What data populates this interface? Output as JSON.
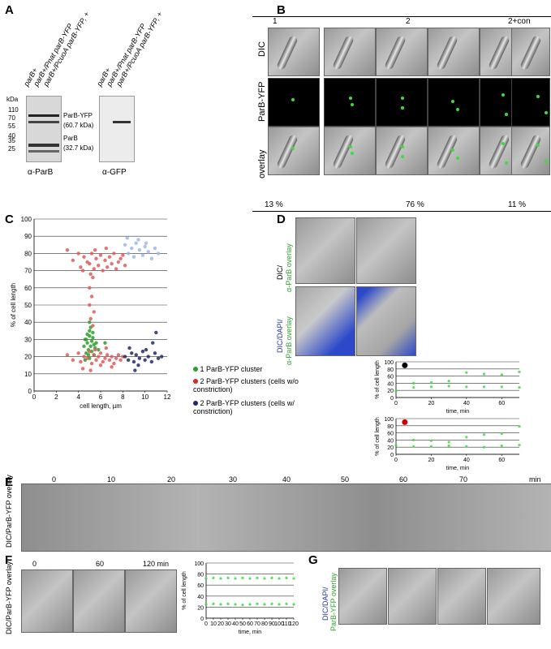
{
  "panel_labels": {
    "a": "A",
    "b": "B",
    "c": "C",
    "d": "D",
    "e": "E",
    "f": "F",
    "g": "G"
  },
  "panel_a": {
    "kda_label": "kDa",
    "markers": [
      "110",
      "70",
      "55",
      "40",
      "35",
      "25"
    ],
    "lanes_left": [
      "parB+",
      "parB+/Pnat parB-YFP",
      "parB+/PcuoA parB-YFP, +"
    ],
    "lanes_right": [
      "parB+",
      "parB+/Pnat parB-YFP",
      "parB+/PcuoA parB-YFP, +"
    ],
    "parb_yfp_label": "ParB-YFP",
    "parb_yfp_kda": "(60.7 kDa)",
    "parb_label": "ParB",
    "parb_kda": "(32.7 kDa)",
    "left_blot_label": "α-ParB",
    "right_blot_label": "α-GFP"
  },
  "panel_b": {
    "col_headers": [
      "1",
      "2",
      "2+con"
    ],
    "row_labels": [
      "DIC",
      "ParB-YFP",
      "overlay"
    ],
    "percentages": [
      "13 %",
      "76  %",
      "11 %"
    ]
  },
  "panel_c": {
    "legend": [
      {
        "label": "1 ParB-YFP cluster",
        "color": "#2ca02c"
      },
      {
        "label": "2 ParB-YFP clusters (cells w/o constriction)",
        "color": "#d62728"
      },
      {
        "label": "2 ParB-YFP clusters (cells w/ constriction)",
        "color": "#1f2a6b"
      }
    ]
  },
  "panel_d": {
    "row_label_1a": "DIC/",
    "row_label_1b": "α-ParB overlay",
    "row_label_2a": "DIC/DAPI/",
    "row_label_2b": "α-ParB overlay"
  },
  "panel_e": {
    "times": [
      "0",
      "10",
      "20",
      "30",
      "40",
      "50",
      "60",
      "70"
    ],
    "unit": "min",
    "row_label": "DIC/ParB-YFP overlay"
  },
  "panel_f": {
    "times": [
      "0",
      "60",
      "120 min"
    ],
    "row_label": "DIC/ParB-YFP overlay"
  },
  "panel_g": {
    "row_label_a": "DIC/DAPI/",
    "row_label_b": "ParB-YFP overlay"
  },
  "chart_data": [
    {
      "type": "scatter",
      "title": "",
      "xlabel": "cell length, µm",
      "ylabel": "% of cell length",
      "xlim": [
        0,
        12
      ],
      "ylim": [
        0,
        100
      ],
      "xticks": [
        0,
        2,
        4,
        6,
        8,
        10,
        12
      ],
      "yticks": [
        0,
        10,
        20,
        30,
        40,
        50,
        60,
        70,
        80,
        90,
        100
      ],
      "grid": "horizontal",
      "series": [
        {
          "name": "1 ParB-YFP cluster",
          "color": "#2ca02c",
          "points": [
            [
              4.6,
              30
            ],
            [
              4.8,
              28
            ],
            [
              5.0,
              32
            ],
            [
              5.1,
              26
            ],
            [
              4.9,
              24
            ],
            [
              5.2,
              29
            ],
            [
              5.4,
              27
            ],
            [
              4.7,
              22
            ],
            [
              5.0,
              35
            ],
            [
              5.3,
              31
            ],
            [
              4.8,
              33
            ],
            [
              5.5,
              25
            ],
            [
              4.9,
              21
            ],
            [
              5.1,
              37
            ],
            [
              5.6,
              28
            ],
            [
              4.5,
              26
            ],
            [
              5.2,
              23
            ],
            [
              5.0,
              19
            ],
            [
              4.7,
              30
            ],
            [
              5.8,
              24
            ],
            [
              5.3,
              34
            ],
            [
              4.6,
              18
            ],
            [
              5.4,
              21
            ],
            [
              6.4,
              28
            ],
            [
              5.0,
              40
            ]
          ]
        },
        {
          "name": "2 ParB-YFP clusters (cells w/o constriction)",
          "color": "#e05a5a",
          "points": [
            [
              3.0,
              82
            ],
            [
              3.5,
              76
            ],
            [
              4.0,
              80
            ],
            [
              4.2,
              72
            ],
            [
              4.5,
              78
            ],
            [
              4.8,
              75
            ],
            [
              5.0,
              74
            ],
            [
              5.2,
              80
            ],
            [
              5.4,
              71
            ],
            [
              5.6,
              77
            ],
            [
              5.8,
              73
            ],
            [
              6.0,
              79
            ],
            [
              6.2,
              70
            ],
            [
              6.4,
              76
            ],
            [
              6.6,
              72
            ],
            [
              6.8,
              78
            ],
            [
              7.0,
              74
            ],
            [
              7.2,
              80
            ],
            [
              7.4,
              71
            ],
            [
              7.6,
              75
            ],
            [
              7.8,
              77
            ],
            [
              8.0,
              79
            ],
            [
              8.2,
              73
            ],
            [
              5.5,
              82
            ],
            [
              6.5,
              83
            ],
            [
              4.4,
              70
            ],
            [
              5.1,
              68
            ],
            [
              5.3,
              66
            ],
            [
              5.0,
              60
            ],
            [
              5.2,
              55
            ],
            [
              5.0,
              50
            ],
            [
              5.4,
              46
            ],
            [
              5.1,
              42
            ],
            [
              5.3,
              38
            ],
            [
              3.0,
              21
            ],
            [
              3.5,
              18
            ],
            [
              4.0,
              22
            ],
            [
              4.2,
              17
            ],
            [
              4.5,
              20
            ],
            [
              4.8,
              19
            ],
            [
              5.0,
              23
            ],
            [
              5.2,
              16
            ],
            [
              5.4,
              21
            ],
            [
              5.6,
              18
            ],
            [
              5.8,
              20
            ],
            [
              6.0,
              22
            ],
            [
              6.2,
              17
            ],
            [
              6.4,
              19
            ],
            [
              6.6,
              21
            ],
            [
              6.8,
              18
            ],
            [
              7.0,
              20
            ],
            [
              7.2,
              16
            ],
            [
              7.4,
              19
            ],
            [
              7.6,
              21
            ],
            [
              7.8,
              18
            ],
            [
              8.0,
              20
            ],
            [
              5.5,
              24
            ],
            [
              6.5,
              25
            ],
            [
              4.4,
              13
            ],
            [
              5.1,
              12
            ],
            [
              6.0,
              15
            ],
            [
              7.0,
              14
            ]
          ]
        },
        {
          "name": "2 ParB-YFP clusters (cells w/ constriction)",
          "color": "#1f2a6b",
          "points": [
            [
              8.2,
              20
            ],
            [
              8.5,
              18
            ],
            [
              8.8,
              22
            ],
            [
              9.0,
              17
            ],
            [
              9.2,
              21
            ],
            [
              9.5,
              19
            ],
            [
              9.8,
              23
            ],
            [
              10.0,
              18
            ],
            [
              10.3,
              20
            ],
            [
              10.6,
              17
            ],
            [
              10.9,
              22
            ],
            [
              11.2,
              19
            ],
            [
              9.4,
              15
            ],
            [
              10.1,
              24
            ],
            [
              11.5,
              20
            ],
            [
              8.6,
              25
            ],
            [
              10.7,
              28
            ],
            [
              11.0,
              34
            ],
            [
              9.1,
              12
            ]
          ]
        },
        {
          "name": "",
          "color": "#9db9e3",
          "points": [
            [
              8.2,
              85
            ],
            [
              8.5,
              80
            ],
            [
              8.8,
              83
            ],
            [
              9.0,
              78
            ],
            [
              9.2,
              86
            ],
            [
              9.5,
              82
            ],
            [
              9.8,
              79
            ],
            [
              10.0,
              84
            ],
            [
              10.3,
              81
            ],
            [
              10.6,
              77
            ],
            [
              10.9,
              83
            ],
            [
              11.2,
              80
            ],
            [
              9.4,
              88
            ],
            [
              8.4,
              89
            ],
            [
              10.1,
              86
            ]
          ]
        }
      ]
    },
    {
      "type": "scatter",
      "title": "",
      "xlabel": "time, min",
      "ylabel": "% of cell length",
      "xlim": [
        0,
        70
      ],
      "ylim": [
        0,
        100
      ],
      "xticks": [
        0,
        20,
        40,
        60
      ],
      "yticks": [
        0,
        20,
        40,
        60,
        80,
        100
      ],
      "marker_color": "#000000",
      "series": [
        {
          "name": "",
          "color": "#3ddc3d",
          "points": [
            [
              0,
              18
            ],
            [
              10,
              40
            ],
            [
              10,
              28
            ],
            [
              20,
              42
            ],
            [
              20,
              30
            ],
            [
              30,
              46
            ],
            [
              30,
              32
            ],
            [
              40,
              70
            ],
            [
              40,
              30
            ],
            [
              50,
              66
            ],
            [
              50,
              30
            ],
            [
              60,
              64
            ],
            [
              60,
              30
            ],
            [
              70,
              72
            ],
            [
              70,
              28
            ]
          ]
        }
      ]
    },
    {
      "type": "scatter",
      "title": "",
      "xlabel": "time, min",
      "ylabel": "% of cell length",
      "xlim": [
        0,
        70
      ],
      "ylim": [
        0,
        100
      ],
      "xticks": [
        0,
        20,
        40,
        60
      ],
      "yticks": [
        0,
        20,
        40,
        60,
        80,
        100
      ],
      "marker_color": "#cc0000",
      "series": [
        {
          "name": "",
          "color": "#3ddc3d",
          "points": [
            [
              0,
              25
            ],
            [
              10,
              40
            ],
            [
              10,
              22
            ],
            [
              20,
              38
            ],
            [
              20,
              22
            ],
            [
              30,
              34
            ],
            [
              30,
              24
            ],
            [
              40,
              48
            ],
            [
              40,
              22
            ],
            [
              50,
              55
            ],
            [
              50,
              20
            ],
            [
              60,
              58
            ],
            [
              60,
              24
            ],
            [
              70,
              78
            ],
            [
              70,
              26
            ]
          ]
        }
      ]
    },
    {
      "type": "scatter",
      "title": "",
      "xlabel": "time, min",
      "ylabel": "% of cell length",
      "xlim": [
        0,
        120
      ],
      "ylim": [
        0,
        100
      ],
      "xticks": [
        0,
        10,
        20,
        30,
        40,
        50,
        60,
        70,
        80,
        90,
        100,
        110,
        120
      ],
      "yticks": [
        0,
        20,
        40,
        60,
        80,
        100
      ],
      "series": [
        {
          "name": "",
          "color": "#3ddc3d",
          "points": [
            [
              0,
              72
            ],
            [
              10,
              73
            ],
            [
              20,
              72
            ],
            [
              30,
              73
            ],
            [
              40,
              72
            ],
            [
              50,
              73
            ],
            [
              60,
              72
            ],
            [
              70,
              73
            ],
            [
              80,
              72
            ],
            [
              90,
              73
            ],
            [
              100,
              72
            ],
            [
              110,
              73
            ],
            [
              120,
              72
            ],
            [
              0,
              25
            ],
            [
              10,
              26
            ],
            [
              20,
              25
            ],
            [
              30,
              26
            ],
            [
              40,
              25
            ],
            [
              50,
              24
            ],
            [
              60,
              25
            ],
            [
              70,
              26
            ],
            [
              80,
              25
            ],
            [
              90,
              26
            ],
            [
              100,
              25
            ],
            [
              110,
              26
            ],
            [
              120,
              25
            ]
          ]
        }
      ]
    }
  ]
}
